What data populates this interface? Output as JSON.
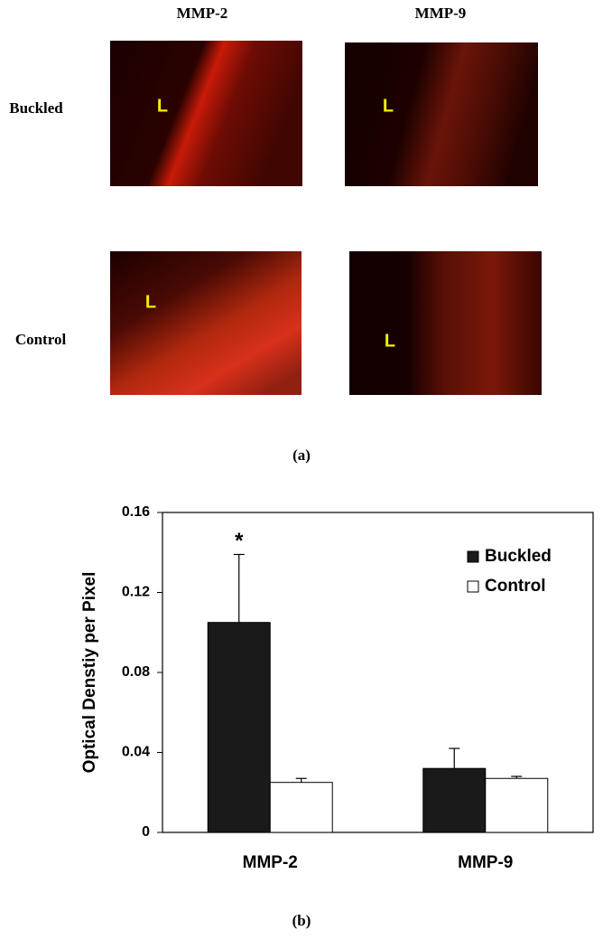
{
  "panel_a": {
    "column_labels": [
      "MMP-2",
      "MMP-9"
    ],
    "row_labels": [
      "Buckled",
      "Control"
    ],
    "lumen_labels": [
      "L",
      "L",
      "L",
      "L"
    ],
    "caption": "(a)"
  },
  "chart_data": {
    "type": "bar",
    "y_label": "Optical Denstiy per Pixel",
    "caption": "(b)",
    "categories": [
      "MMP-2",
      "MMP-9"
    ],
    "series": [
      {
        "name": "Buckled",
        "color": "#1a1a1a",
        "values": [
          0.105,
          0.032
        ],
        "errors": [
          0.034,
          0.01
        ]
      },
      {
        "name": "Control",
        "color": "#ffffff",
        "values": [
          0.025,
          0.027
        ],
        "errors": [
          0.002,
          0.001
        ]
      }
    ],
    "annotations": [
      "*"
    ],
    "ylim": [
      0,
      0.16
    ],
    "yticks": [
      0,
      0.04,
      0.08,
      0.12,
      0.16
    ],
    "grid": false,
    "legend": "upper-right"
  }
}
